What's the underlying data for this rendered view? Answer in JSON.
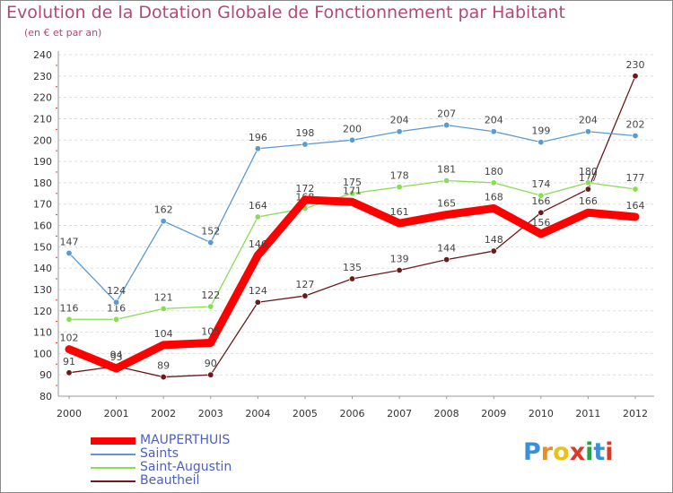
{
  "title": "Evolution de la Dotation Globale de Fonctionnement par Habitant",
  "subtitle": "(en € et par an)",
  "logo": "Proxiti",
  "chart_data": {
    "type": "line",
    "title": "Evolution de la Dotation Globale de Fonctionnement par Habitant",
    "subtitle": "(en € et par an)",
    "xlabel": "",
    "ylabel": "",
    "categories": [
      "2000",
      "2001",
      "2002",
      "2003",
      "2004",
      "2005",
      "2006",
      "2007",
      "2008",
      "2009",
      "2010",
      "2011",
      "2012"
    ],
    "ylim": [
      80,
      240
    ],
    "yticks": [
      80,
      90,
      100,
      110,
      120,
      130,
      140,
      150,
      160,
      170,
      180,
      190,
      200,
      210,
      220,
      230,
      240
    ],
    "grid": "horizontal",
    "legend_position": "bottom-left",
    "series": [
      {
        "name": "Beautheil",
        "color": "#6b1a1a",
        "values": [
          91,
          94,
          89,
          90,
          124,
          127,
          135,
          139,
          144,
          148,
          166,
          177,
          230
        ]
      },
      {
        "name": "Saint-Augustin",
        "color": "#88dd55",
        "values": [
          116,
          116,
          121,
          122,
          164,
          168,
          175,
          178,
          181,
          180,
          174,
          180,
          177
        ]
      },
      {
        "name": "Saints",
        "color": "#5a9ad2",
        "values": [
          147,
          124,
          162,
          152,
          196,
          198,
          200,
          204,
          207,
          204,
          199,
          204,
          202
        ]
      },
      {
        "name": "MAUPERTHUIS",
        "color": "#ff0000",
        "values": [
          102,
          93,
          104,
          105,
          146,
          172,
          171,
          161,
          165,
          168,
          156,
          166,
          164
        ]
      }
    ],
    "legend_order": [
      "MAUPERTHUIS",
      "Saints",
      "Saint-Augustin",
      "Beautheil"
    ]
  }
}
